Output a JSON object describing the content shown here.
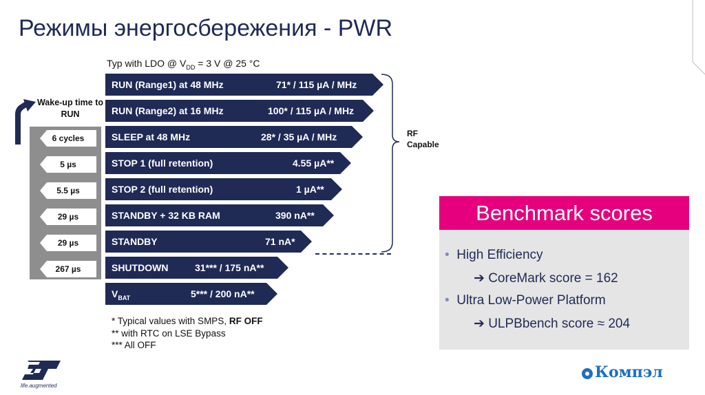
{
  "title": "Режимы энергосбережения - PWR",
  "conditions": {
    "prefix": "Typ with LDO @ V",
    "sub": "DD",
    "suffix": " = 3 V @ 25 °C"
  },
  "wakeup_label": "Wake-up time to RUN",
  "wakeup_times": [
    "6 cycles",
    "5 µs",
    "5.5 µs",
    "29 µs",
    "29 µs",
    "267 µs"
  ],
  "modes": [
    {
      "label": "RUN (Range1) at 48 MHz",
      "value": "71* / 115 µA / MHz"
    },
    {
      "label": "RUN (Range2) at 16 MHz",
      "value": "100* / 115 µA / MHz"
    },
    {
      "label": "SLEEP at 48 MHz",
      "value": "28* / 35 µA / MHz"
    },
    {
      "label": "STOP 1 (full retention)",
      "value": "4.55 µA**"
    },
    {
      "label": "STOP 2 (full retention)",
      "value": "1 µA**"
    },
    {
      "label": "STANDBY + 32 KB RAM",
      "value": "390 nA**"
    },
    {
      "label": "STANDBY",
      "value": "71 nA*"
    },
    {
      "label": "SHUTDOWN",
      "value": "31*** / 175 nA**"
    },
    {
      "label": "V",
      "label_sub": "BAT",
      "value": "5*** / 200 nA**"
    }
  ],
  "rf_label": "RF Capable",
  "notes": {
    "line1_prefix": "* Typical values with SMPS, ",
    "line1_bold": "RF OFF",
    "line2": "** with RTC on LSE Bypass",
    "line3": "*** All OFF"
  },
  "benchmark": {
    "heading": "Benchmark scores",
    "bullet1": "High Efficiency",
    "sub1": "CoreMark score = 162",
    "bullet2": "Ultra Low-Power Platform",
    "sub2": "ULPBbench score ≈ 204"
  },
  "footer": {
    "st_tagline": "life.augmented",
    "kompel": "Компэл"
  },
  "colors": {
    "bar": "#1f2a55",
    "accent": "#e6007e",
    "panel": "#e5e5e5",
    "gray_column": "#8e8e8e"
  }
}
